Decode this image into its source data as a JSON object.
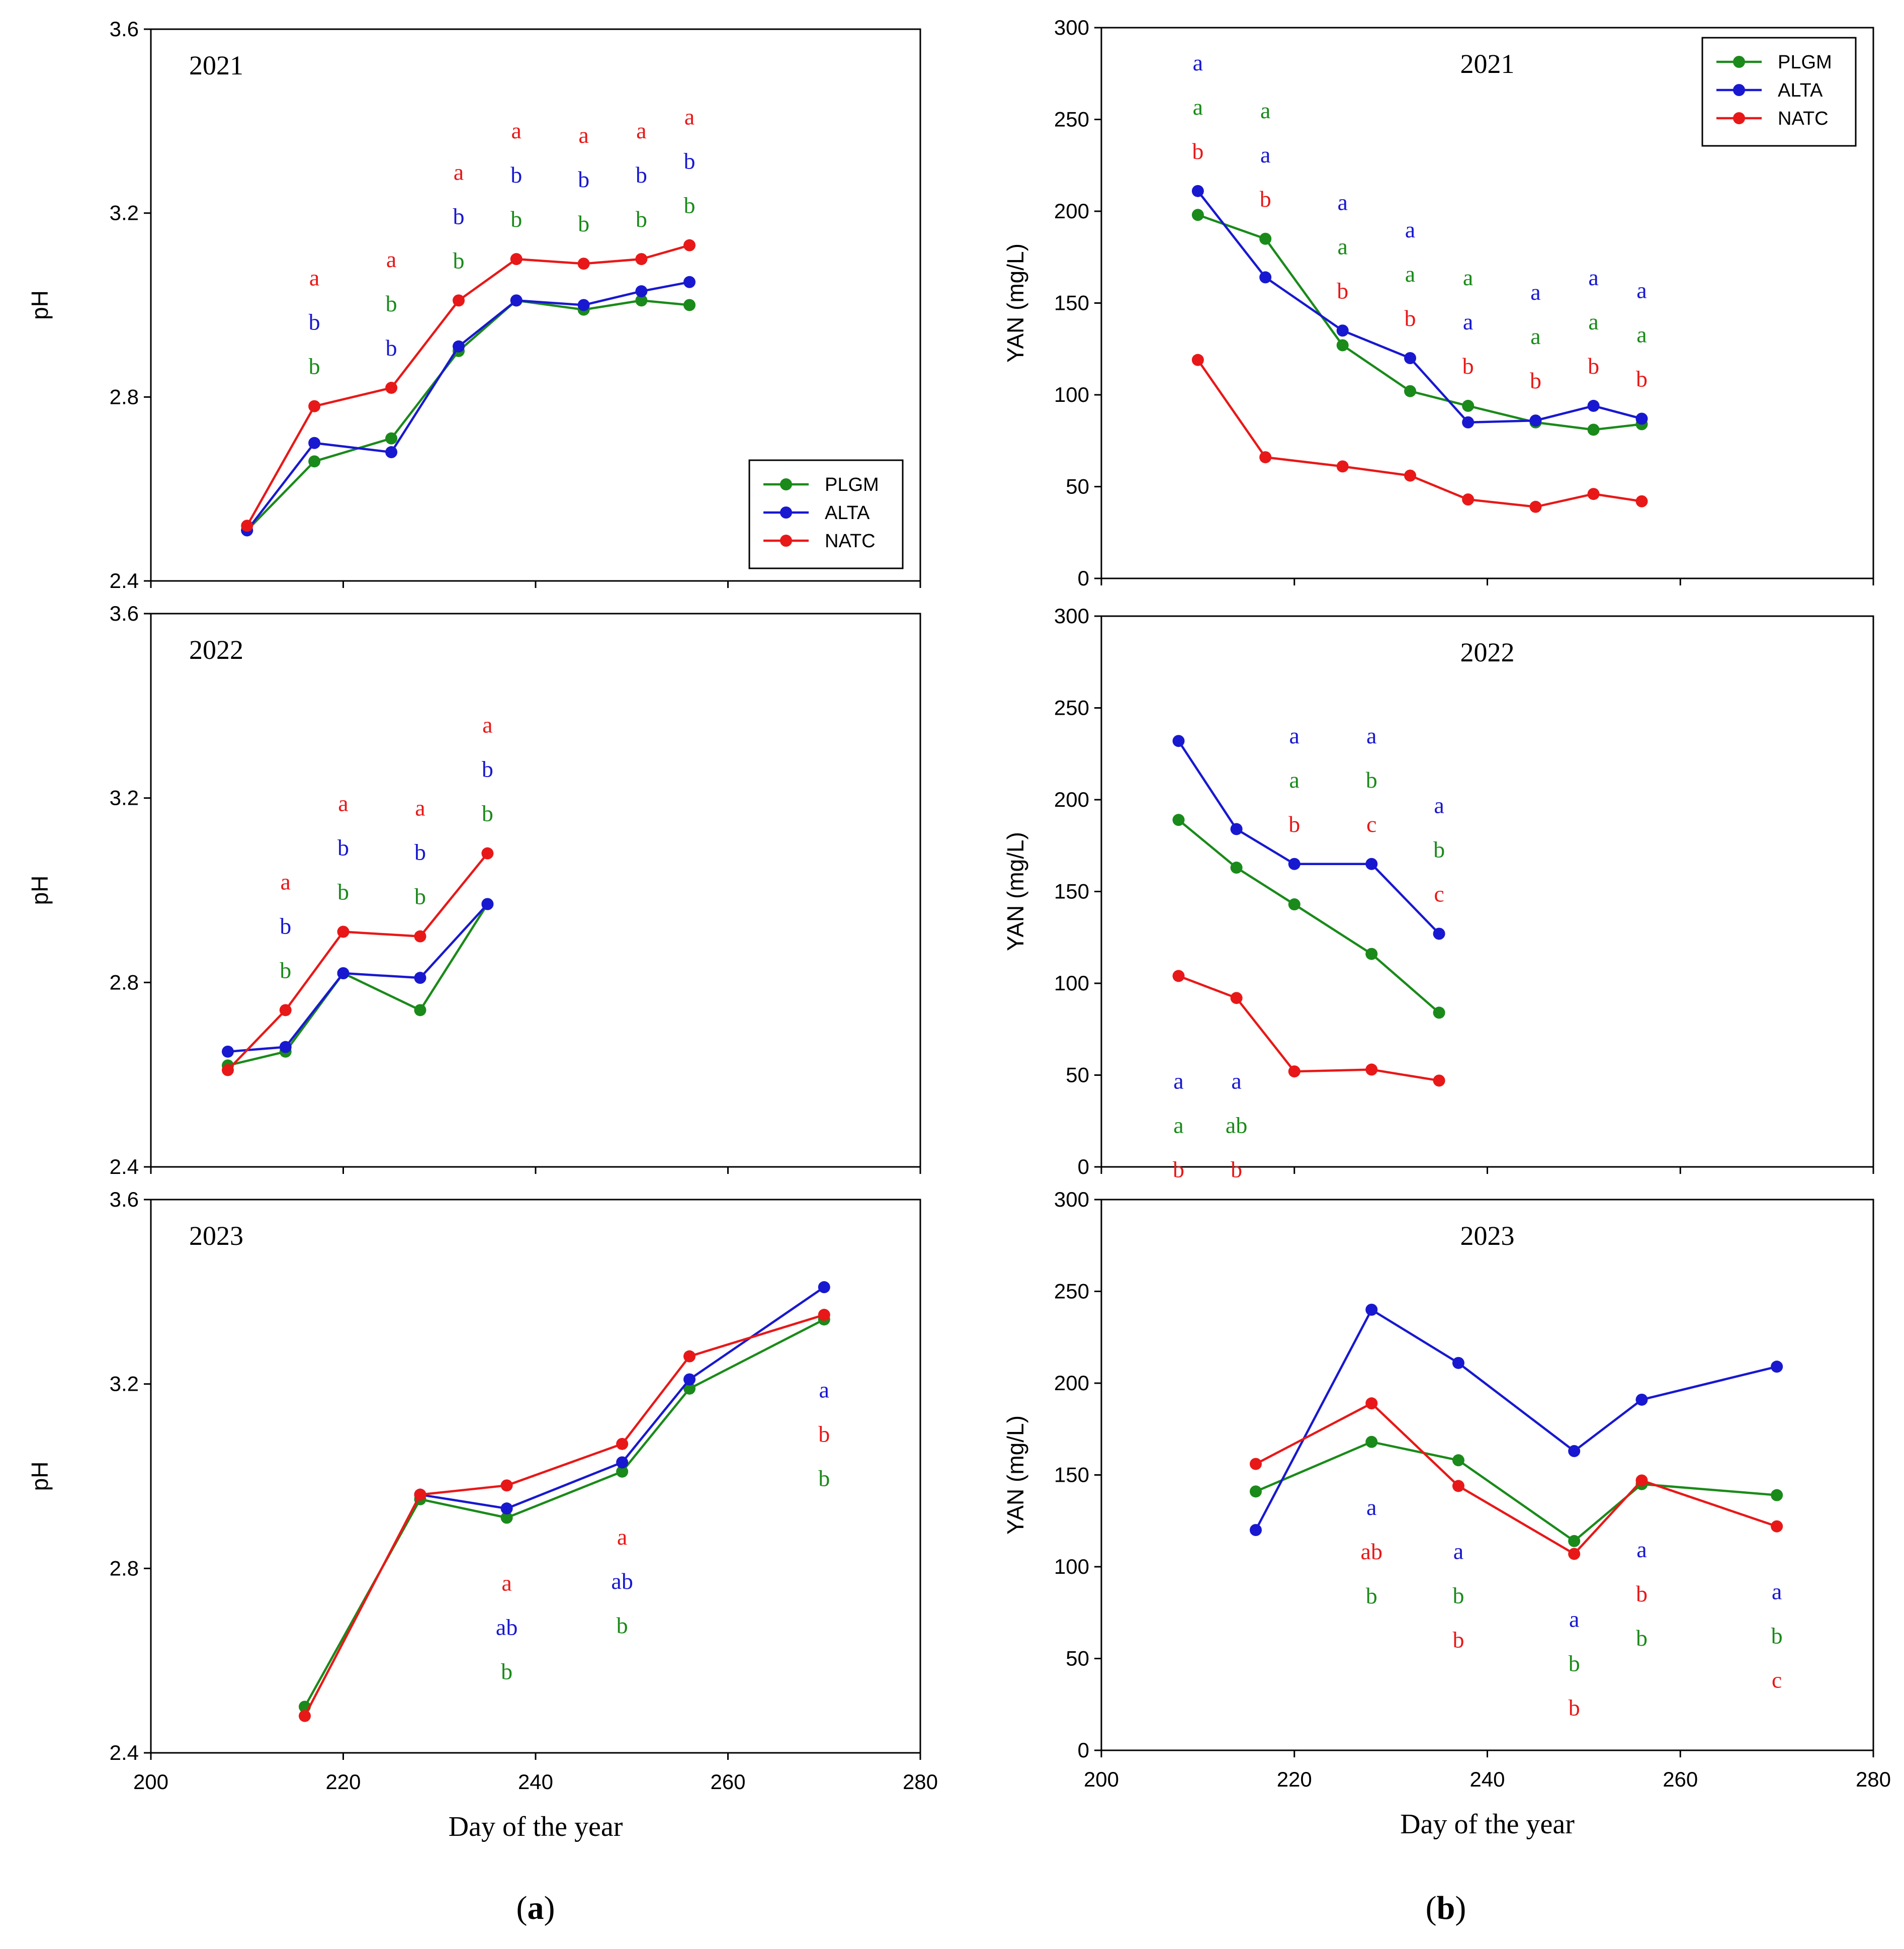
{
  "figure": {
    "panel_labels": [
      "a",
      "b"
    ],
    "xlabel": "Day of the year",
    "legend": [
      {
        "name": "PLGM",
        "color": "#1a8a1a"
      },
      {
        "name": "ALTA",
        "color": "#1818d0"
      },
      {
        "name": "NATC",
        "color": "#e81818"
      }
    ]
  },
  "chart_data": [
    {
      "id": "ph-2021",
      "type": "line",
      "title": "2021",
      "xlabel": "",
      "ylabel": "pH",
      "xlim": [
        200,
        280
      ],
      "ylim": [
        2.4,
        3.6
      ],
      "yticks": [
        "2.4",
        "2.8",
        "3.2",
        "3.6"
      ],
      "xticks": [],
      "legend": true,
      "series": [
        {
          "name": "PLGM",
          "x": [
            210,
            217,
            225,
            232,
            238,
            245,
            251,
            256
          ],
          "y": [
            2.51,
            2.66,
            2.71,
            2.9,
            3.01,
            2.99,
            3.01,
            3.0
          ]
        },
        {
          "name": "ALTA",
          "x": [
            210,
            217,
            225,
            232,
            238,
            245,
            251,
            256
          ],
          "y": [
            2.51,
            2.7,
            2.68,
            2.91,
            3.01,
            3.0,
            3.03,
            3.05
          ]
        },
        {
          "name": "NATC",
          "x": [
            210,
            217,
            225,
            232,
            238,
            245,
            251,
            256
          ],
          "y": [
            2.52,
            2.78,
            2.82,
            3.01,
            3.1,
            3.09,
            3.1,
            3.13
          ]
        }
      ],
      "annotations": [
        {
          "x": 217,
          "NATC": "a",
          "ALTA": "b",
          "PLGM": "b"
        },
        {
          "x": 225,
          "NATC": "a",
          "PLGM": "b",
          "ALTA": "b"
        },
        {
          "x": 232,
          "NATC": "a",
          "ALTA": "b",
          "PLGM": "b"
        },
        {
          "x": 238,
          "NATC": "a",
          "ALTA": "b",
          "PLGM": "b"
        },
        {
          "x": 245,
          "NATC": "a",
          "ALTA": "b",
          "PLGM": "b"
        },
        {
          "x": 251,
          "NATC": "a",
          "ALTA": "b",
          "PLGM": "b"
        },
        {
          "x": 256,
          "NATC": "a",
          "ALTA": "b",
          "PLGM": "b"
        }
      ]
    },
    {
      "id": "yan-2021",
      "type": "line",
      "title": "2021",
      "xlabel": "",
      "ylabel": "YAN (mg/L)",
      "xlim": [
        200,
        280
      ],
      "ylim": [
        0,
        300
      ],
      "yticks": [
        "0",
        "50",
        "100",
        "150",
        "200",
        "250",
        "300"
      ],
      "xticks": [],
      "legend": true,
      "series": [
        {
          "name": "PLGM",
          "x": [
            210,
            217,
            225,
            232,
            238,
            245,
            251,
            256
          ],
          "y": [
            198,
            185,
            127,
            102,
            94,
            85,
            81,
            84
          ]
        },
        {
          "name": "ALTA",
          "x": [
            210,
            217,
            225,
            232,
            238,
            245,
            251,
            256
          ],
          "y": [
            211,
            164,
            135,
            120,
            85,
            86,
            94,
            87
          ]
        },
        {
          "name": "NATC",
          "x": [
            210,
            217,
            225,
            232,
            238,
            245,
            251,
            256
          ],
          "y": [
            119,
            66,
            61,
            56,
            43,
            39,
            46,
            42
          ]
        }
      ],
      "annotations": [
        {
          "x": 210,
          "ALTA": "a",
          "PLGM": "a",
          "NATC": "b"
        },
        {
          "x": 217,
          "PLGM": "a",
          "ALTA": "a",
          "NATC": "b"
        },
        {
          "x": 225,
          "ALTA": "a",
          "PLGM": "a",
          "NATC": "b"
        },
        {
          "x": 232,
          "ALTA": "a",
          "PLGM": "a",
          "NATC": "b"
        },
        {
          "x": 238,
          "PLGM": "a",
          "ALTA": "a",
          "NATC": "b"
        },
        {
          "x": 245,
          "ALTA": "a",
          "PLGM": "a",
          "NATC": "b"
        },
        {
          "x": 251,
          "ALTA": "a",
          "PLGM": "a",
          "NATC": "b"
        },
        {
          "x": 256,
          "ALTA": "a",
          "PLGM": "a",
          "NATC": "b"
        }
      ]
    },
    {
      "id": "ph-2022",
      "type": "line",
      "title": "2022",
      "xlabel": "",
      "ylabel": "pH",
      "xlim": [
        200,
        280
      ],
      "ylim": [
        2.4,
        3.6
      ],
      "yticks": [
        "2.4",
        "2.8",
        "3.2",
        "3.6"
      ],
      "xticks": [],
      "legend": false,
      "series": [
        {
          "name": "PLGM",
          "x": [
            208,
            214,
            220,
            228,
            235
          ],
          "y": [
            2.62,
            2.65,
            2.82,
            2.74,
            2.97
          ]
        },
        {
          "name": "ALTA",
          "x": [
            208,
            214,
            220,
            228,
            235
          ],
          "y": [
            2.65,
            2.66,
            2.82,
            2.81,
            2.97
          ]
        },
        {
          "name": "NATC",
          "x": [
            208,
            214,
            220,
            228,
            235
          ],
          "y": [
            2.61,
            2.74,
            2.91,
            2.9,
            3.08
          ]
        }
      ],
      "annotations": [
        {
          "x": 214,
          "NATC": "a",
          "ALTA": "b",
          "PLGM": "b"
        },
        {
          "x": 220,
          "NATC": "a",
          "ALTA": "b",
          "PLGM": "b"
        },
        {
          "x": 228,
          "NATC": "a",
          "ALTA": "b",
          "PLGM": "b"
        },
        {
          "x": 235,
          "NATC": "a",
          "ALTA": "b",
          "PLGM": "b"
        }
      ]
    },
    {
      "id": "yan-2022",
      "type": "line",
      "title": "2022",
      "xlabel": "",
      "ylabel": "YAN (mg/L)",
      "xlim": [
        200,
        280
      ],
      "ylim": [
        0,
        300
      ],
      "yticks": [
        "0",
        "50",
        "100",
        "150",
        "200",
        "250",
        "300"
      ],
      "xticks": [],
      "legend": false,
      "series": [
        {
          "name": "PLGM",
          "x": [
            208,
            214,
            220,
            228,
            235
          ],
          "y": [
            189,
            163,
            143,
            116,
            84
          ]
        },
        {
          "name": "ALTA",
          "x": [
            208,
            214,
            220,
            228,
            235
          ],
          "y": [
            232,
            184,
            165,
            165,
            127
          ]
        },
        {
          "name": "NATC",
          "x": [
            208,
            214,
            220,
            228,
            235
          ],
          "y": [
            104,
            92,
            52,
            53,
            47
          ]
        }
      ],
      "annotations": [
        {
          "x": 208,
          "ALTA": "a",
          "PLGM": "a",
          "NATC": "b"
        },
        {
          "x": 214,
          "ALTA": "a",
          "PLGM": "ab",
          "NATC": "b"
        },
        {
          "x": 220,
          "ALTA": "a",
          "PLGM": "a",
          "NATC": "b"
        },
        {
          "x": 228,
          "ALTA": "a",
          "PLGM": "b",
          "NATC": "c"
        },
        {
          "x": 235,
          "ALTA": "a",
          "PLGM": "b",
          "NATC": "c"
        }
      ]
    },
    {
      "id": "ph-2023",
      "type": "line",
      "title": "2023",
      "xlabel": "Day of the year",
      "ylabel": "pH",
      "xlim": [
        200,
        280
      ],
      "ylim": [
        2.4,
        3.6
      ],
      "yticks": [
        "2.4",
        "2.8",
        "3.2",
        "3.6"
      ],
      "xticks": [
        "200",
        "220",
        "240",
        "260",
        "280"
      ],
      "legend": false,
      "series": [
        {
          "name": "PLGM",
          "x": [
            216,
            228,
            237,
            249,
            256,
            270
          ],
          "y": [
            2.5,
            2.95,
            2.91,
            3.01,
            3.19,
            3.34
          ]
        },
        {
          "name": "ALTA",
          "x": [
            228,
            237,
            249,
            256,
            270
          ],
          "y": [
            2.96,
            2.93,
            3.03,
            3.21,
            3.41
          ]
        },
        {
          "name": "NATC",
          "x": [
            216,
            228,
            237,
            249,
            256,
            270
          ],
          "y": [
            2.48,
            2.96,
            2.98,
            3.07,
            3.26,
            3.35
          ]
        }
      ],
      "annotations": [
        {
          "x": 237,
          "NATC": "a",
          "ALTA": "ab",
          "PLGM": "b"
        },
        {
          "x": 249,
          "NATC": "a",
          "ALTA": "ab",
          "PLGM": "b"
        },
        {
          "x": 270,
          "ALTA": "a",
          "NATC": "b",
          "PLGM": "b"
        }
      ]
    },
    {
      "id": "yan-2023",
      "type": "line",
      "title": "2023",
      "xlabel": "Day of the year",
      "ylabel": "YAN (mg/L)",
      "xlim": [
        200,
        280
      ],
      "ylim": [
        0,
        300
      ],
      "yticks": [
        "0",
        "50",
        "100",
        "150",
        "200",
        "250",
        "300"
      ],
      "xticks": [
        "200",
        "220",
        "240",
        "260",
        "280"
      ],
      "legend": false,
      "series": [
        {
          "name": "PLGM",
          "x": [
            216,
            228,
            237,
            249,
            256,
            270
          ],
          "y": [
            141,
            168,
            158,
            114,
            145,
            139
          ]
        },
        {
          "name": "ALTA",
          "x": [
            216,
            228,
            237,
            249,
            256,
            270
          ],
          "y": [
            120,
            240,
            211,
            163,
            191,
            209
          ]
        },
        {
          "name": "NATC",
          "x": [
            216,
            228,
            237,
            249,
            256,
            270
          ],
          "y": [
            156,
            189,
            144,
            107,
            147,
            122
          ]
        }
      ],
      "annotations": [
        {
          "x": 228,
          "ALTA": "a",
          "NATC": "ab",
          "PLGM": "b"
        },
        {
          "x": 237,
          "ALTA": "a",
          "PLGM": "b",
          "NATC": "b"
        },
        {
          "x": 249,
          "ALTA": "a",
          "PLGM": "b",
          "NATC": "b"
        },
        {
          "x": 256,
          "ALTA": "a",
          "NATC": "b",
          "PLGM": "b"
        },
        {
          "x": 270,
          "ALTA": "a",
          "PLGM": "b",
          "NATC": "c"
        }
      ]
    }
  ]
}
